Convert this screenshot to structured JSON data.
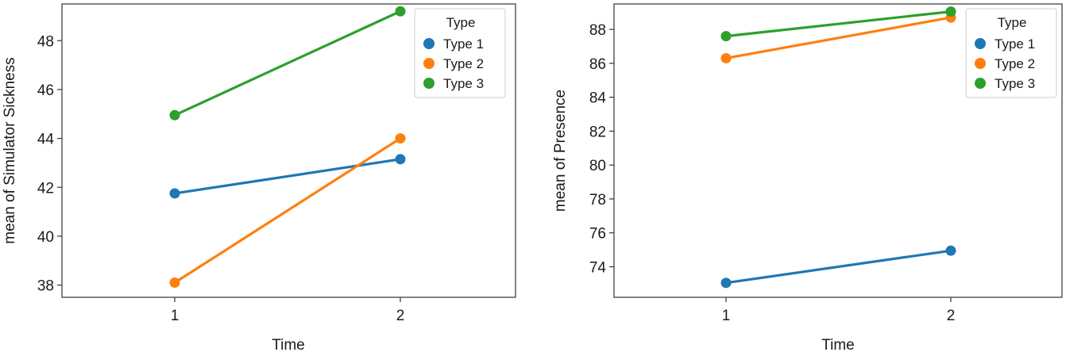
{
  "chart_data": [
    {
      "type": "line",
      "xlabel": "Time",
      "ylabel": "mean of Simulator Sickness",
      "categories": [
        "1",
        "2"
      ],
      "yticks": [
        38,
        40,
        42,
        44,
        46,
        48
      ],
      "ylim": [
        37.5,
        49.5
      ],
      "legend": {
        "title": "Type",
        "position": "top-right"
      },
      "series": [
        {
          "name": "Type 1",
          "color": "#1f77b4",
          "values": [
            41.75,
            43.15
          ]
        },
        {
          "name": "Type 2",
          "color": "#ff7f0e",
          "values": [
            38.1,
            44.0
          ]
        },
        {
          "name": "Type 3",
          "color": "#2ca02c",
          "values": [
            44.95,
            49.2
          ]
        }
      ]
    },
    {
      "type": "line",
      "xlabel": "Time",
      "ylabel": "mean of Presence",
      "categories": [
        "1",
        "2"
      ],
      "yticks": [
        74,
        76,
        78,
        80,
        82,
        84,
        86,
        88
      ],
      "ylim": [
        72.2,
        89.5
      ],
      "legend": {
        "title": "Type",
        "position": "top-right"
      },
      "series": [
        {
          "name": "Type 1",
          "color": "#1f77b4",
          "values": [
            73.05,
            74.95
          ]
        },
        {
          "name": "Type 2",
          "color": "#ff7f0e",
          "values": [
            86.3,
            88.7
          ]
        },
        {
          "name": "Type 3",
          "color": "#2ca02c",
          "values": [
            87.6,
            89.05
          ]
        }
      ]
    }
  ]
}
